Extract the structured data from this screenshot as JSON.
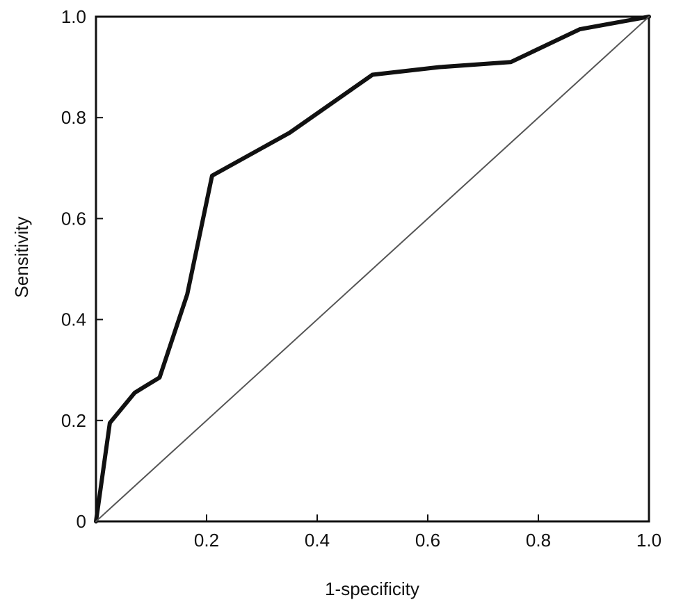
{
  "chart_data": {
    "type": "line",
    "title": "",
    "xlabel": "1-specificity",
    "ylabel": "Sensitivity",
    "xlim": [
      0,
      1
    ],
    "ylim": [
      0,
      1
    ],
    "grid": false,
    "legend": "none",
    "x_ticks": [
      0.2,
      0.4,
      0.6,
      0.8,
      1.0
    ],
    "x_tick_labels": [
      "0.2",
      "0.4",
      "0.6",
      "0.8",
      "1.0"
    ],
    "y_ticks": [
      0,
      0.2,
      0.4,
      0.6,
      0.8,
      1.0
    ],
    "y_tick_labels": [
      "0",
      "0.2",
      "0.4",
      "0.6",
      "0.8",
      "1.0"
    ],
    "series": [
      {
        "role": "roc-curve",
        "color": "#111111",
        "x": [
          0,
          0.025,
          0.07,
          0.085,
          0.115,
          0.165,
          0.21,
          0.35,
          0.5,
          0.62,
          0.75,
          0.875,
          1.0
        ],
        "y": [
          0,
          0.195,
          0.255,
          0.265,
          0.285,
          0.45,
          0.685,
          0.77,
          0.885,
          0.9,
          0.91,
          0.975,
          1.0
        ]
      },
      {
        "role": "reference-diagonal",
        "color": "#555555",
        "x": [
          0,
          1
        ],
        "y": [
          0,
          1
        ]
      }
    ]
  }
}
